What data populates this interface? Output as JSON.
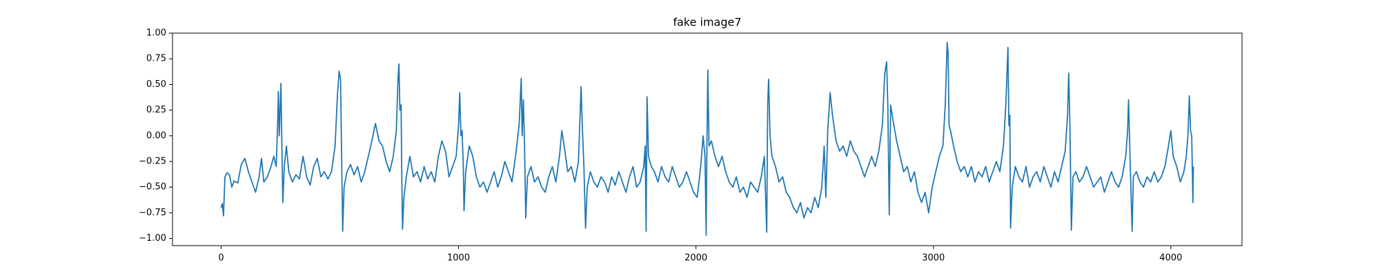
{
  "chart_data": {
    "type": "line",
    "title": "fake image7",
    "color": "#1f77b4",
    "x": [
      0,
      5,
      10,
      16,
      25,
      35,
      45,
      55,
      70,
      85,
      100,
      115,
      130,
      145,
      160,
      170,
      180,
      195,
      210,
      222,
      232,
      238,
      241,
      245,
      252,
      256,
      260,
      266,
      275,
      285,
      300,
      315,
      330,
      345,
      360,
      375,
      390,
      405,
      420,
      435,
      450,
      465,
      480,
      490,
      497,
      503,
      507,
      512,
      518,
      530,
      545,
      560,
      575,
      590,
      605,
      620,
      635,
      650,
      665,
      680,
      695,
      710,
      725,
      738,
      745,
      749,
      753,
      758,
      761,
      764,
      770,
      780,
      795,
      810,
      825,
      840,
      855,
      870,
      885,
      900,
      915,
      930,
      945,
      960,
      975,
      990,
      1000,
      1005,
      1010,
      1015,
      1020,
      1023,
      1030,
      1045,
      1060,
      1075,
      1090,
      1105,
      1120,
      1135,
      1150,
      1165,
      1180,
      1195,
      1210,
      1225,
      1240,
      1255,
      1264,
      1268,
      1273,
      1278,
      1283,
      1290,
      1305,
      1320,
      1335,
      1350,
      1365,
      1380,
      1395,
      1410,
      1425,
      1435,
      1445,
      1460,
      1475,
      1490,
      1505,
      1512,
      1516,
      1522,
      1528,
      1535,
      1542,
      1555,
      1570,
      1585,
      1600,
      1615,
      1630,
      1645,
      1660,
      1675,
      1690,
      1705,
      1720,
      1735,
      1750,
      1765,
      1780,
      1786,
      1790,
      1794,
      1800,
      1812,
      1825,
      1840,
      1855,
      1870,
      1885,
      1900,
      1915,
      1930,
      1945,
      1960,
      1975,
      1990,
      2005,
      2020,
      2030,
      2038,
      2043,
      2046,
      2050,
      2055,
      2065,
      2080,
      2095,
      2110,
      2125,
      2140,
      2155,
      2170,
      2185,
      2200,
      2215,
      2230,
      2245,
      2260,
      2275,
      2288,
      2298,
      2302,
      2306,
      2312,
      2320,
      2335,
      2350,
      2365,
      2380,
      2395,
      2410,
      2425,
      2440,
      2455,
      2470,
      2485,
      2500,
      2515,
      2530,
      2540,
      2547,
      2555,
      2565,
      2575,
      2590,
      2605,
      2620,
      2635,
      2650,
      2665,
      2680,
      2695,
      2710,
      2725,
      2740,
      2755,
      2770,
      2785,
      2795,
      2803,
      2808,
      2814,
      2820,
      2830,
      2845,
      2860,
      2875,
      2890,
      2905,
      2920,
      2935,
      2950,
      2965,
      2980,
      2995,
      3010,
      3025,
      3040,
      3050,
      3058,
      3062,
      3066,
      3072,
      3085,
      3100,
      3115,
      3130,
      3145,
      3160,
      3175,
      3190,
      3205,
      3220,
      3235,
      3250,
      3265,
      3280,
      3295,
      3305,
      3314,
      3318,
      3322,
      3325,
      3332,
      3345,
      3360,
      3375,
      3390,
      3405,
      3420,
      3435,
      3450,
      3465,
      3480,
      3495,
      3510,
      3525,
      3540,
      3555,
      3565,
      3570,
      3575,
      3581,
      3588,
      3600,
      3615,
      3630,
      3645,
      3660,
      3675,
      3690,
      3705,
      3720,
      3735,
      3750,
      3765,
      3780,
      3795,
      3810,
      3818,
      3822,
      3828,
      3837,
      3842,
      3855,
      3870,
      3885,
      3900,
      3915,
      3930,
      3945,
      3960,
      3975,
      3990,
      4000,
      4010,
      4025,
      4040,
      4055,
      4065,
      4072,
      4078,
      4083,
      4088,
      4093,
      4095
    ],
    "values": [
      -0.7,
      -0.66,
      -0.78,
      -0.4,
      -0.36,
      -0.38,
      -0.5,
      -0.44,
      -0.46,
      -0.28,
      -0.22,
      -0.35,
      -0.45,
      -0.55,
      -0.4,
      -0.22,
      -0.45,
      -0.4,
      -0.3,
      -0.2,
      -0.3,
      0.1,
      0.43,
      0.0,
      0.51,
      -0.1,
      -0.65,
      -0.3,
      -0.1,
      -0.35,
      -0.45,
      -0.38,
      -0.42,
      -0.2,
      -0.4,
      -0.48,
      -0.3,
      -0.22,
      -0.4,
      -0.35,
      -0.42,
      -0.35,
      -0.1,
      0.4,
      0.63,
      0.55,
      -0.1,
      -0.93,
      -0.5,
      -0.35,
      -0.28,
      -0.38,
      -0.3,
      -0.45,
      -0.35,
      -0.2,
      -0.05,
      0.12,
      -0.05,
      -0.1,
      -0.25,
      -0.35,
      -0.2,
      0.05,
      0.55,
      0.7,
      0.25,
      0.3,
      -0.4,
      -0.91,
      -0.6,
      -0.4,
      -0.2,
      -0.4,
      -0.35,
      -0.45,
      -0.3,
      -0.42,
      -0.35,
      -0.45,
      -0.2,
      -0.05,
      -0.15,
      -0.4,
      -0.3,
      -0.2,
      0.1,
      0.42,
      0.0,
      0.05,
      -0.3,
      -0.73,
      -0.35,
      -0.1,
      -0.2,
      -0.4,
      -0.5,
      -0.45,
      -0.55,
      -0.45,
      -0.35,
      -0.5,
      -0.4,
      -0.25,
      -0.35,
      -0.45,
      -0.2,
      0.1,
      0.56,
      0.0,
      0.35,
      -0.1,
      -0.8,
      -0.4,
      -0.3,
      -0.45,
      -0.4,
      -0.5,
      -0.55,
      -0.4,
      -0.3,
      -0.45,
      -0.2,
      0.05,
      -0.1,
      -0.35,
      -0.3,
      -0.45,
      -0.25,
      0.2,
      0.48,
      0.05,
      -0.3,
      -0.9,
      -0.5,
      -0.35,
      -0.45,
      -0.5,
      -0.4,
      -0.45,
      -0.55,
      -0.4,
      -0.48,
      -0.35,
      -0.45,
      -0.55,
      -0.4,
      -0.3,
      -0.5,
      -0.45,
      -0.3,
      -0.1,
      -0.93,
      0.38,
      -0.2,
      -0.3,
      -0.35,
      -0.45,
      -0.3,
      -0.4,
      -0.45,
      -0.3,
      -0.4,
      -0.5,
      -0.45,
      -0.35,
      -0.45,
      -0.55,
      -0.6,
      -0.3,
      0.0,
      -0.2,
      -0.97,
      -0.1,
      0.64,
      -0.1,
      -0.05,
      -0.2,
      -0.3,
      -0.2,
      -0.35,
      -0.45,
      -0.5,
      -0.4,
      -0.55,
      -0.5,
      -0.6,
      -0.45,
      -0.5,
      -0.55,
      -0.4,
      -0.2,
      -0.94,
      0.3,
      0.55,
      0.0,
      -0.2,
      -0.3,
      -0.45,
      -0.4,
      -0.55,
      -0.6,
      -0.7,
      -0.75,
      -0.65,
      -0.8,
      -0.7,
      -0.75,
      -0.6,
      -0.7,
      -0.5,
      -0.1,
      -0.6,
      0.05,
      0.42,
      0.2,
      -0.05,
      -0.15,
      -0.1,
      -0.2,
      -0.05,
      -0.15,
      -0.2,
      -0.3,
      -0.4,
      -0.3,
      -0.2,
      -0.3,
      -0.15,
      0.1,
      0.6,
      0.72,
      0.3,
      -0.77,
      0.3,
      0.15,
      -0.05,
      -0.2,
      -0.35,
      -0.3,
      -0.45,
      -0.35,
      -0.55,
      -0.65,
      -0.55,
      -0.75,
      -0.5,
      -0.35,
      -0.2,
      -0.1,
      0.3,
      0.91,
      0.8,
      0.1,
      0.05,
      -0.1,
      -0.25,
      -0.35,
      -0.3,
      -0.4,
      -0.3,
      -0.45,
      -0.35,
      -0.4,
      -0.3,
      -0.45,
      -0.35,
      -0.25,
      -0.35,
      -0.1,
      0.3,
      0.86,
      0.1,
      0.2,
      -0.9,
      -0.5,
      -0.3,
      -0.4,
      -0.45,
      -0.3,
      -0.5,
      -0.4,
      -0.35,
      -0.45,
      -0.3,
      -0.4,
      -0.5,
      -0.35,
      -0.45,
      -0.3,
      -0.15,
      0.2,
      0.61,
      0.1,
      -0.92,
      -0.4,
      -0.35,
      -0.45,
      -0.4,
      -0.3,
      -0.4,
      -0.5,
      -0.45,
      -0.4,
      -0.55,
      -0.45,
      -0.35,
      -0.45,
      -0.5,
      -0.4,
      -0.2,
      0.05,
      0.35,
      -0.2,
      -0.93,
      -0.4,
      -0.35,
      -0.45,
      -0.5,
      -0.4,
      -0.45,
      -0.35,
      -0.45,
      -0.4,
      -0.3,
      -0.1,
      0.05,
      -0.2,
      -0.3,
      -0.45,
      -0.35,
      -0.2,
      0.0,
      0.39,
      0.05,
      0.0,
      -0.65,
      -0.3
    ],
    "xlim": [
      -204.75,
      4299.75
    ],
    "ylim": [
      -1.07,
      1.0
    ],
    "xticks": [
      0,
      1000,
      2000,
      3000,
      4000
    ],
    "yticks": [
      {
        "value": -1.0,
        "label": "−1.00"
      },
      {
        "value": -0.75,
        "label": "−0.75"
      },
      {
        "value": -0.5,
        "label": "−0.50"
      },
      {
        "value": -0.25,
        "label": "−0.25"
      },
      {
        "value": 0,
        "label": "0.00"
      },
      {
        "value": 0.25,
        "label": "0.25"
      },
      {
        "value": 0.5,
        "label": "0.50"
      },
      {
        "value": 0.75,
        "label": "0.75"
      },
      {
        "value": 1.0,
        "label": "1.00"
      }
    ]
  }
}
